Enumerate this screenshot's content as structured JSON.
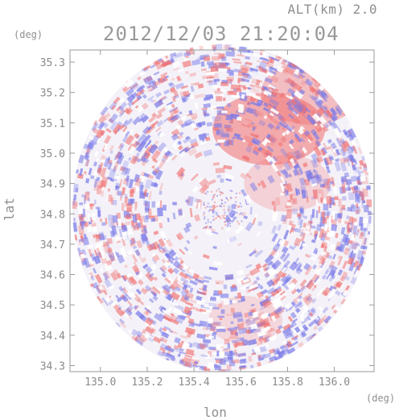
{
  "header": {
    "altitude_label": "ALT(km) 2.0",
    "timestamp": "2012/12/03 21:20:04"
  },
  "chart_data": {
    "type": "heatmap",
    "title": "2012/12/03 21:20:04",
    "subtitle": "ALT(km) 2.0",
    "xlabel": "lon",
    "ylabel": "lat",
    "x_unit": "(deg)",
    "y_unit": "(deg)",
    "xlim": [
      134.87,
      136.17
    ],
    "ylim": [
      34.28,
      35.34
    ],
    "x_ticks": [
      135.0,
      135.2,
      135.4,
      135.6,
      135.8,
      136.0
    ],
    "x_tick_labels": [
      "135.0",
      "135.2",
      "135.4",
      "135.6",
      "135.8",
      "136.0"
    ],
    "y_ticks": [
      34.3,
      34.4,
      34.5,
      34.6,
      34.7,
      34.8,
      34.9,
      35.0,
      35.1,
      35.2,
      35.3
    ],
    "y_tick_labels": [
      "34.3",
      "34.4",
      "34.5",
      "34.6",
      "34.7",
      "34.8",
      "34.9",
      "35.0",
      "35.1",
      "35.2",
      "35.3"
    ],
    "radar_center": {
      "lon": 135.52,
      "lat": 34.82
    },
    "radar_range_deg": {
      "lon": 0.64,
      "lat": 0.54
    },
    "grid": false,
    "colors": {
      "positive": "#f07070",
      "negative": "#7a7ae8",
      "neutral": "#f4f2f8",
      "axis": "#8a8a8a"
    },
    "regions": [
      {
        "name": "strong positive area",
        "lon": 135.72,
        "lat": 35.08,
        "intensity": 0.55
      },
      {
        "name": "north-east positive area",
        "lon": 135.9,
        "lat": 35.2,
        "intensity": 0.4
      },
      {
        "name": "weak positive area",
        "lon": 135.8,
        "lat": 34.9,
        "intensity": 0.25
      },
      {
        "name": "south weak positive area",
        "lon": 135.62,
        "lat": 34.45,
        "intensity": 0.2
      }
    ]
  }
}
